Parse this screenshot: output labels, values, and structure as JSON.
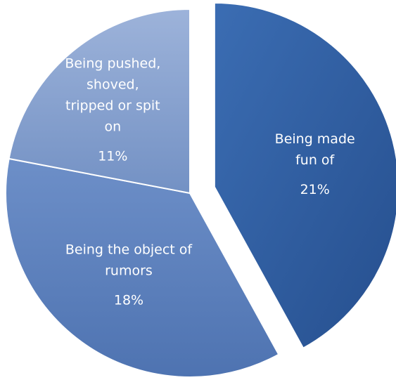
{
  "chart_data": {
    "type": "pie",
    "title": "",
    "legend": "none",
    "labels_position": "inside",
    "slices": [
      {
        "label": "Being made fun of",
        "value": 21,
        "value_label": "21%",
        "exploded": true,
        "color": "#2f5d9f"
      },
      {
        "label": "Being the object of rumors",
        "value": 18,
        "value_label": "18%",
        "exploded": false,
        "color": "#5c7fbc"
      },
      {
        "label": "Being pushed, shoved, tripped or spit on",
        "value": 11,
        "value_label": "11%",
        "exploded": false,
        "color": "#8aa4cf"
      }
    ]
  }
}
